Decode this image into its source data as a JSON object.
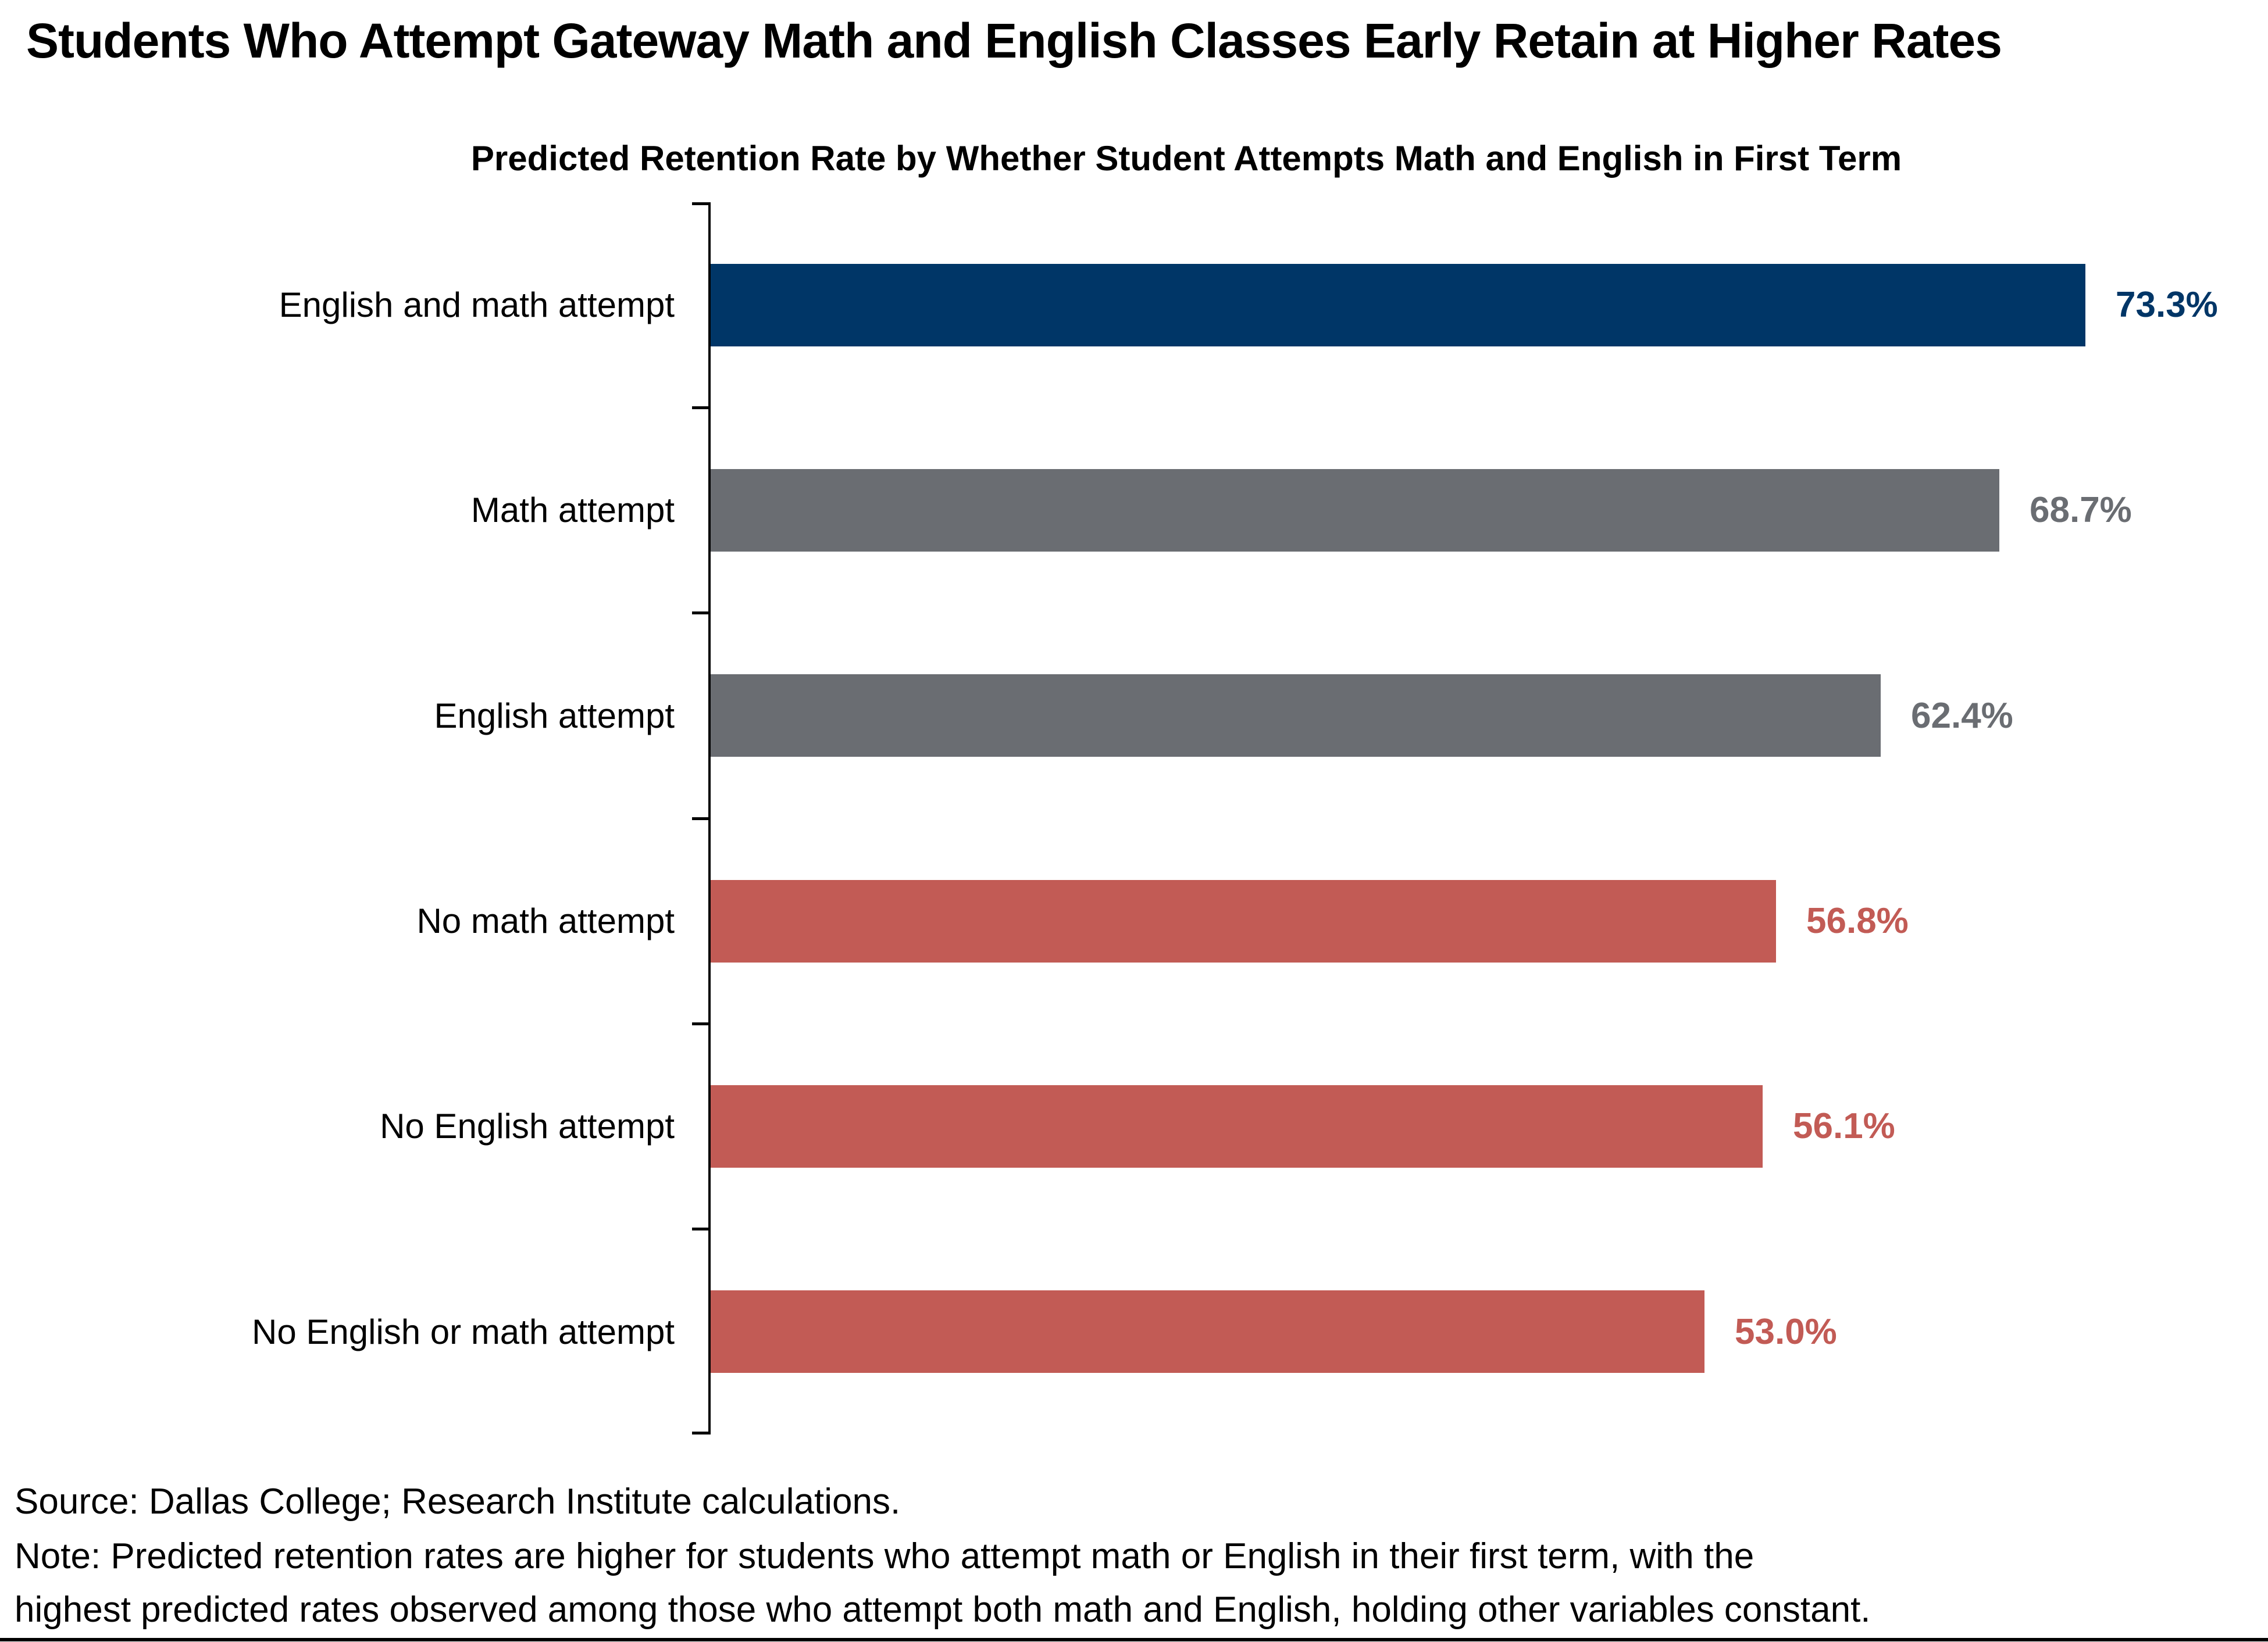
{
  "page": {
    "title": "Students Who Attempt Gateway Math and English Classes Early Retain at Higher Rates",
    "footer": {
      "source": "Source: Dallas College; Research Institute calculations.",
      "note_line_1": "Note: Predicted retention rates are higher for students who attempt math or English in their first term, with the",
      "note_line_2": "highest predicted rates observed among those who attempt both math and English, holding other variables constant."
    }
  },
  "chart_data": {
    "type": "bar",
    "orientation": "horizontal",
    "title": "Predicted Retention Rate by Whether Student Attempts Math and English in First Term",
    "categories": [
      "English and math attempt",
      "Math attempt",
      "English attempt",
      "No math attempt",
      "No English attempt",
      "No English or math attempt"
    ],
    "values": [
      73.3,
      68.7,
      62.4,
      56.8,
      56.1,
      53.0
    ],
    "value_labels": [
      "73.3%",
      "68.7%",
      "62.4%",
      "56.8%",
      "56.1%",
      "53.0%"
    ],
    "bar_colors": [
      "#003667",
      "#6A6D72",
      "#6A6D72",
      "#C25B55",
      "#C25B55",
      "#C25B55"
    ],
    "colors": {
      "highlight_navy": "#003667",
      "neutral_gray": "#6A6D72",
      "warning_red": "#C25B55",
      "axis_black": "#000000"
    },
    "xlim": [
      0,
      83
    ],
    "grid": false,
    "legend": false,
    "x_axis_visible": false,
    "data_labels": "outside-end, colored same as bar"
  }
}
